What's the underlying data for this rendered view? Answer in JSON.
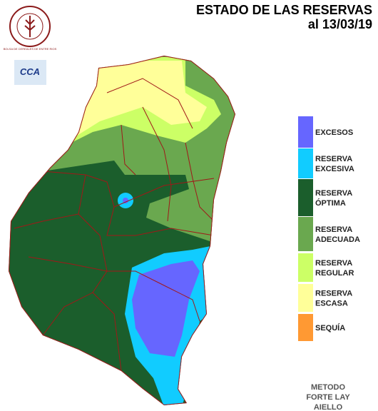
{
  "header": {
    "title": "ESTADO DE LAS RESERVAS",
    "date": "al 13/03/19"
  },
  "logos": {
    "bolsa": "BOLSA DE CEREALES DE ENTRE RIOS",
    "cca": "CCA"
  },
  "legend": [
    {
      "lines": [
        "EXCESOS"
      ],
      "color": "#6666ff"
    },
    {
      "lines": [
        "RESERVA",
        "EXCESIVA"
      ],
      "color": "#11ccff"
    },
    {
      "lines": [
        "RESERVA",
        "ÓPTIMA"
      ],
      "color": "#1b5e2c"
    },
    {
      "lines": [
        "RESERVA",
        "ADECUADA"
      ],
      "color": "#6aa84f"
    },
    {
      "lines": [
        "RESERVA",
        "REGULAR"
      ],
      "color": "#ccff66"
    },
    {
      "lines": [
        "RESERVA",
        "ESCASA"
      ],
      "color": "#ffff99"
    },
    {
      "lines": [
        "SEQUÍA"
      ],
      "color": "#ff9933"
    }
  ],
  "method": [
    "METODO",
    "FORTE LAY",
    "AIELLO"
  ]
}
